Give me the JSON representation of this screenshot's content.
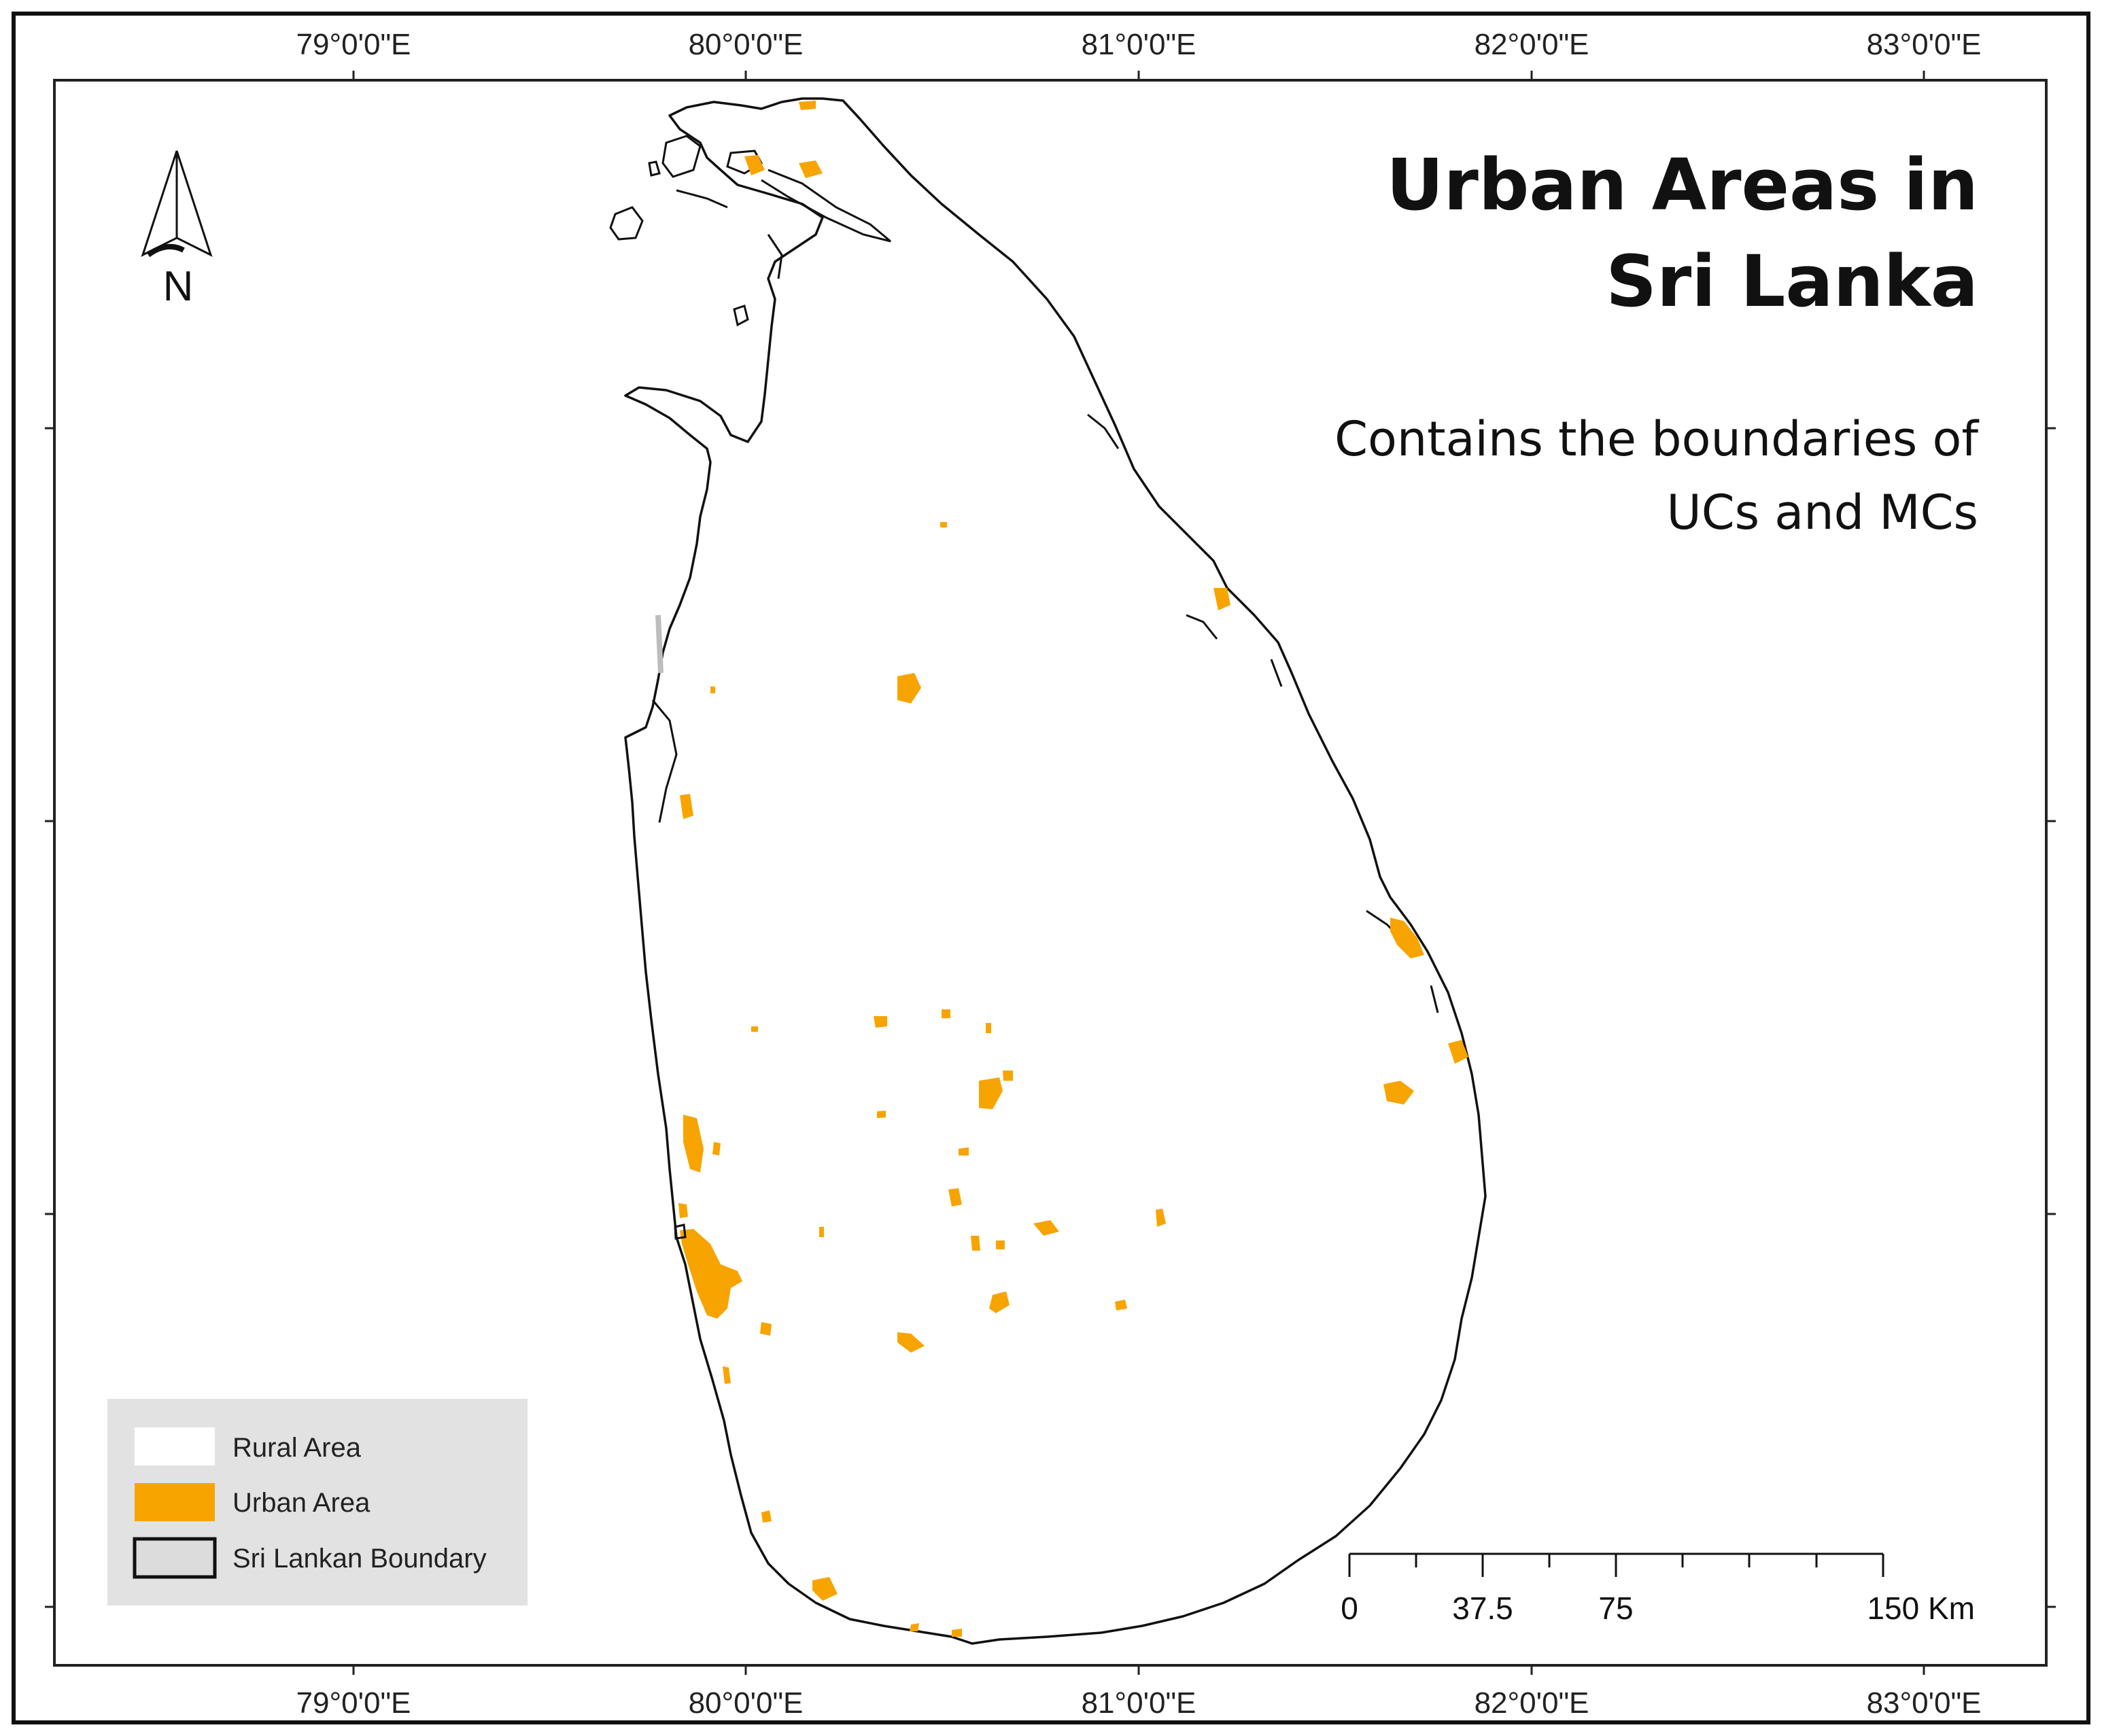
{
  "title_lines": [
    "Urban Areas in",
    "Sri Lanka"
  ],
  "subtitle_lines": [
    "Contains the boundaries of",
    "UCs and MCs"
  ],
  "north_label": "N",
  "graticule": {
    "top": [
      "79°0'0\"E",
      "80°0'0\"E",
      "81°0'0\"E",
      "82°0'0\"E",
      "83°0'0\"E"
    ],
    "bottom": [
      "79°0'0\"E",
      "80°0'0\"E",
      "81°0'0\"E",
      "82°0'0\"E",
      "83°0'0\"E"
    ]
  },
  "legend": {
    "items": [
      {
        "label": "Rural Area",
        "color": "#ffffff"
      },
      {
        "label": "Urban Area",
        "color": "#f7a400"
      },
      {
        "label": "Sri Lankan Boundary",
        "color": "#dcdcdc"
      }
    ]
  },
  "scale_bar": {
    "labels": [
      "0",
      "37.5",
      "75",
      "150 Km"
    ]
  },
  "colors": {
    "urban": "#f7a400",
    "boundary": "#111111",
    "legend_bg": "#e2e2e2"
  }
}
